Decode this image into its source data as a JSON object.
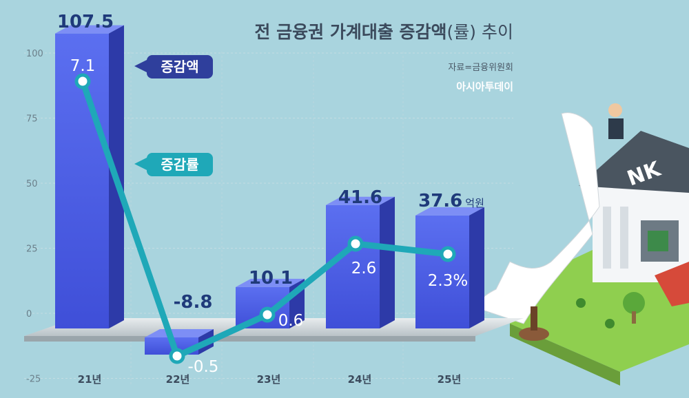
{
  "chart_data": {
    "type": "bar",
    "title_bold": "전 금융권 가계대출 증감액",
    "title_light": "(률) 추이",
    "source": "자료=금융위원회",
    "brand": "아시아투데이",
    "categories": [
      "21년",
      "22년",
      "23년",
      "24년",
      "25년"
    ],
    "ylim": [
      -25,
      100
    ],
    "yticks": [
      100,
      75,
      50,
      25,
      0,
      -25
    ],
    "grid": true,
    "series": [
      {
        "name": "증감액",
        "type": "bar",
        "unit": "억원",
        "values": [
          107.5,
          -8.8,
          10.1,
          41.6,
          37.6
        ],
        "color": "#4a5fe0"
      },
      {
        "name": "증감률",
        "type": "line",
        "values": [
          7.1,
          -0.5,
          0.6,
          2.6,
          2.3
        ],
        "last_suffix": "%",
        "color": "#1fa8b8"
      }
    ],
    "value_labels": [
      "107.5",
      "-8.8",
      "10.1",
      "41.6",
      "37.6"
    ],
    "rate_labels": [
      "7.1",
      "-0.5",
      "0.6",
      "2.6",
      "2.3"
    ]
  }
}
